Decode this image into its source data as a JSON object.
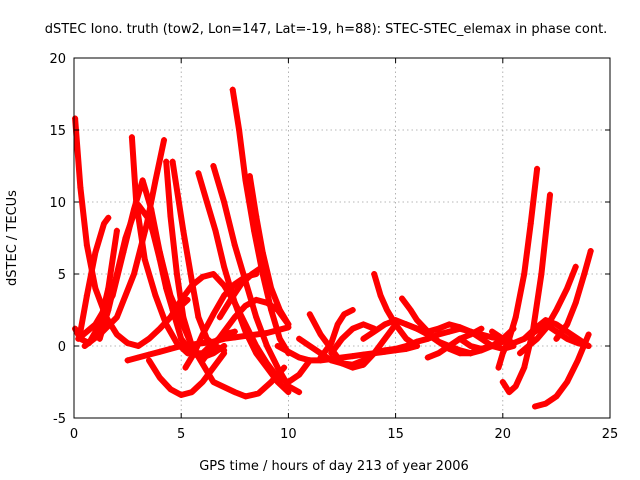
{
  "chart_data": {
    "type": "scatter",
    "title": "dSTEC Iono. truth (tow2, Lon=147, Lat=-19, h=88): STEC-STEC_elemax in phase cont.",
    "xlabel": "GPS time / hours of day 213 of year 2006",
    "ylabel": "dSTEC  / TECUs",
    "xlim": [
      0,
      25
    ],
    "ylim": [
      -5,
      20
    ],
    "xticks": [
      0,
      5,
      10,
      15,
      20,
      25
    ],
    "yticks": [
      -5,
      0,
      5,
      10,
      15,
      20
    ],
    "grid": true,
    "legend": "none",
    "marker": "+",
    "color": "#ff0000",
    "series": [
      {
        "x": [
          0.05,
          0.3,
          0.6,
          1.0,
          1.5,
          2.0,
          2.5,
          3.0,
          3.5,
          4.0,
          4.5,
          5.0,
          5.3
        ],
        "y": [
          15.8,
          11,
          7,
          4,
          2,
          0.8,
          0.2,
          0,
          0.5,
          1.2,
          2.0,
          2.8,
          3.2
        ]
      },
      {
        "x": [
          0.05,
          0.3,
          0.7,
          1.2,
          1.6,
          2.0
        ],
        "y": [
          1.2,
          0.5,
          0.2,
          1.5,
          4,
          8
        ]
      },
      {
        "x": [
          0.3,
          0.6,
          1.0,
          1.4,
          1.6
        ],
        "y": [
          1.0,
          3.5,
          6.5,
          8.5,
          8.9
        ]
      },
      {
        "x": [
          0.5,
          1.2,
          2.0,
          2.8,
          3.4,
          3.8,
          4.2
        ],
        "y": [
          0,
          0.8,
          2.0,
          5.0,
          8.5,
          11.5,
          14.3
        ]
      },
      {
        "x": [
          0.2,
          1.0,
          1.8,
          2.3,
          2.8,
          3.2,
          3.6,
          4.0,
          4.5,
          5.5,
          6.5,
          7.5,
          8.0,
          8.6,
          9.2,
          9.8
        ],
        "y": [
          0.5,
          1.5,
          3.5,
          6.5,
          9.5,
          11.5,
          9.5,
          6.5,
          3.5,
          0,
          -2.5,
          -3.2,
          -3.5,
          -3.3,
          -2.5,
          -1.5
        ]
      },
      {
        "x": [
          1.2,
          1.6,
          2.0,
          2.4,
          2.8
        ],
        "y": [
          0.5,
          2.5,
          5.0,
          7.5,
          9.2
        ]
      },
      {
        "x": [
          2.7,
          2.9,
          3.3,
          3.8,
          4.3,
          4.8,
          5.3,
          6.0,
          6.5,
          7.0,
          7.5
        ],
        "y": [
          14.5,
          10.0,
          6.0,
          3.5,
          1.5,
          0.2,
          -0.5,
          -0.5,
          0.2,
          0.8,
          1.0
        ]
      },
      {
        "x": [
          2.5,
          3.0,
          3.5,
          4.0,
          4.5,
          5.0,
          5.5,
          6.0,
          6.5,
          7.0,
          7.5,
          8.0,
          8.5,
          9.0,
          9.5,
          10.0
        ],
        "y": [
          -1.0,
          -0.8,
          -0.6,
          -0.4,
          -0.2,
          0.0,
          0.1,
          0.2,
          0.3,
          0.5,
          0.6,
          0.7,
          0.8,
          0.9,
          1.1,
          1.3
        ]
      },
      {
        "x": [
          3.5,
          4.0,
          4.3,
          4.7,
          5.0,
          5.5,
          6.0,
          6.5,
          7.0
        ],
        "y": [
          9,
          6,
          4,
          2,
          0.5,
          -0.5,
          -0.8,
          -0.5,
          0.0
        ]
      },
      {
        "x": [
          4.3,
          4.5,
          4.8,
          5.1,
          5.5,
          6.0
        ],
        "y": [
          12.8,
          9,
          5,
          2,
          0,
          -1.0
        ]
      },
      {
        "x": [
          4.6,
          5.1,
          5.5,
          5.8,
          6.2,
          6.6,
          7.0
        ],
        "y": [
          12.8,
          8.0,
          4.5,
          2.0,
          0.5,
          0.0,
          -0.3
        ]
      },
      {
        "x": [
          4.9,
          4.6,
          4.3,
          4.0,
          3.5,
          3.0
        ],
        "y": [
          1.5,
          2.5,
          4.5,
          6.5,
          8.8,
          9.8
        ]
      },
      {
        "x": [
          3.5,
          4.0,
          4.5,
          5.0,
          5.5,
          6.0,
          6.5,
          7.0
        ],
        "y": [
          -1.0,
          -2.2,
          -3.0,
          -3.4,
          -3.2,
          -2.5,
          -1.5,
          -0.5
        ]
      },
      {
        "x": [
          5.8,
          6.2,
          6.6,
          7.0,
          7.5,
          8.0,
          8.5,
          9.0,
          9.5,
          10.0
        ],
        "y": [
          12.0,
          10.0,
          8.0,
          5.5,
          3.0,
          1.0,
          -0.5,
          -1.5,
          -2.5,
          -3.2
        ]
      },
      {
        "x": [
          6.5,
          7.0,
          7.5,
          8.0,
          8.5,
          9.0,
          9.5,
          10.0,
          10.5
        ],
        "y": [
          12.5,
          10,
          7,
          4.5,
          2.0,
          0.0,
          -1.5,
          -2.8,
          -3.2
        ]
      },
      {
        "x": [
          7.4,
          7.7,
          8.0,
          8.4,
          8.8,
          9.2,
          9.6,
          10.0
        ],
        "y": [
          17.8,
          15.0,
          11.5,
          8.0,
          5.0,
          2.5,
          0.5,
          -0.5
        ]
      },
      {
        "x": [
          8.2,
          8.5,
          8.8,
          9.2,
          9.6,
          10.0
        ],
        "y": [
          11.8,
          9.0,
          6.5,
          4.0,
          2.5,
          1.5
        ]
      },
      {
        "x": [
          4.5,
          5.0,
          5.5,
          6.0,
          6.5,
          7.0,
          7.5,
          8.0,
          8.5,
          9.0,
          9.5,
          10.0,
          10.5,
          11.0
        ],
        "y": [
          2.0,
          3.2,
          4.2,
          4.8,
          5.0,
          4.2,
          3.0,
          1.5,
          0.0,
          -1.2,
          -2.2,
          -2.5,
          -2.0,
          -1.0
        ]
      },
      {
        "x": [
          5.2,
          5.6,
          6.0,
          6.5,
          7.0,
          7.5,
          8.0,
          8.5
        ],
        "y": [
          -1.5,
          -0.5,
          0.8,
          2.2,
          3.5,
          4.3,
          4.8,
          5.0
        ]
      },
      {
        "x": [
          6.0,
          6.5,
          7.0,
          7.5,
          8.0,
          8.5,
          9.0,
          9.5,
          10.0
        ],
        "y": [
          -1.0,
          0.0,
          1.0,
          2.0,
          2.8,
          3.2,
          3.0,
          2.5,
          1.5
        ]
      },
      {
        "x": [
          6.8,
          7.3,
          7.8,
          8.3,
          8.8
        ],
        "y": [
          2.0,
          3.2,
          4.3,
          5.0,
          5.5
        ]
      },
      {
        "x": [
          9.5,
          10.0,
          10.5,
          11.0,
          11.5,
          12.0,
          12.5,
          13.0,
          13.5,
          14.0,
          14.5,
          15.0,
          15.5,
          16.0
        ],
        "y": [
          0.0,
          -0.4,
          -0.8,
          -1.0,
          -1.0,
          -0.9,
          -0.8,
          -0.7,
          -0.6,
          -0.5,
          -0.4,
          -0.3,
          -0.2,
          0.0
        ]
      },
      {
        "x": [
          10.5,
          11.0,
          11.5,
          12.0,
          12.5,
          13.0,
          13.5,
          14.0
        ],
        "y": [
          0.5,
          0.0,
          -0.5,
          -1.0,
          -1.2,
          -1.3,
          -1.0,
          -0.5
        ]
      },
      {
        "x": [
          11.0,
          11.5,
          12.0,
          12.5,
          13.0,
          13.5,
          14.0,
          14.5,
          15.0
        ],
        "y": [
          2.2,
          0.8,
          -0.2,
          -1.2,
          -1.5,
          -1.3,
          -0.5,
          0.5,
          1.5
        ]
      },
      {
        "x": [
          11.5,
          12.0,
          12.3,
          12.6,
          13.0
        ],
        "y": [
          -0.8,
          0.2,
          1.5,
          2.2,
          2.5
        ]
      },
      {
        "x": [
          12.0,
          12.5,
          13.0,
          13.5,
          14.0
        ],
        "y": [
          -0.5,
          0.5,
          1.2,
          1.5,
          1.2
        ]
      },
      {
        "x": [
          13.5,
          14.0,
          14.5,
          15.0,
          15.5,
          16.0,
          16.5,
          17.0,
          17.5,
          18.0,
          18.5,
          19.0,
          19.5,
          20.0
        ],
        "y": [
          0.5,
          1.0,
          1.5,
          1.8,
          1.5,
          1.2,
          1.0,
          1.2,
          1.5,
          1.3,
          1.0,
          0.8,
          0.6,
          0.5
        ]
      },
      {
        "x": [
          14.0,
          14.3,
          14.6,
          15.0,
          15.5,
          16.0
        ],
        "y": [
          5.0,
          3.5,
          2.5,
          1.5,
          0.5,
          0.0
        ]
      },
      {
        "x": [
          15.3,
          15.7,
          16.0,
          16.5,
          17.0,
          17.5,
          18.0,
          18.5,
          19.0,
          19.5
        ],
        "y": [
          3.3,
          2.5,
          1.8,
          1.0,
          0.3,
          -0.2,
          -0.5,
          -0.5,
          -0.2,
          0.0
        ]
      },
      {
        "x": [
          14.0,
          14.5,
          15.0,
          15.5,
          16.0,
          16.5,
          17.0,
          17.5,
          18.0,
          18.5,
          19.0,
          19.5,
          20.0,
          20.5
        ],
        "y": [
          -0.5,
          -0.3,
          -0.2,
          0.0,
          0.3,
          0.5,
          0.8,
          1.0,
          1.2,
          1.0,
          0.5,
          0.0,
          -0.2,
          0.0
        ]
      },
      {
        "x": [
          15.5,
          16.0,
          16.5,
          17.0,
          17.5,
          18.0,
          18.5,
          19.0,
          19.5,
          20.0
        ],
        "y": [
          1.5,
          1.2,
          0.8,
          0.3,
          0.0,
          -0.3,
          -0.5,
          -0.3,
          0.0,
          0.3
        ]
      },
      {
        "x": [
          16.5,
          17.0,
          17.5,
          18.0,
          18.5,
          19.0
        ],
        "y": [
          -0.8,
          -0.5,
          0.0,
          0.5,
          0.8,
          1.2
        ]
      },
      {
        "x": [
          18.0,
          18.5,
          19.0,
          19.5,
          20.0,
          20.5
        ],
        "y": [
          0.5,
          0.0,
          -0.2,
          0.0,
          0.5,
          1.2
        ]
      },
      {
        "x": [
          19.5,
          20.0,
          20.5,
          21.0,
          21.5,
          22.0,
          22.5,
          23.0,
          23.5,
          24.0
        ],
        "y": [
          1.0,
          0.5,
          0.2,
          0.5,
          1.0,
          1.5,
          1.0,
          0.5,
          0.2,
          0.0
        ]
      },
      {
        "x": [
          19.8,
          20.0,
          20.3,
          20.6,
          21.0,
          21.3,
          21.6
        ],
        "y": [
          -1.5,
          -0.5,
          0.5,
          2.0,
          5.0,
          8.5,
          12.3
        ]
      },
      {
        "x": [
          20.0,
          20.3,
          20.6,
          21.0,
          21.4,
          21.8,
          22.2
        ],
        "y": [
          -2.5,
          -3.2,
          -2.8,
          -1.5,
          1.0,
          5.0,
          10.5
        ]
      },
      {
        "x": [
          20.8,
          21.2,
          21.6,
          22.0,
          22.5,
          23.0,
          23.4
        ],
        "y": [
          -0.5,
          0.0,
          0.5,
          1.2,
          2.5,
          4.0,
          5.5
        ]
      },
      {
        "x": [
          21.5,
          22.0,
          22.5,
          23.0,
          23.5,
          24.0
        ],
        "y": [
          -4.2,
          -4.0,
          -3.5,
          -2.5,
          -1.0,
          0.8
        ]
      },
      {
        "x": [
          22.5,
          23.0,
          23.4,
          23.8,
          24.1
        ],
        "y": [
          0.5,
          1.5,
          3.0,
          5.0,
          6.6
        ]
      },
      {
        "x": [
          21.0,
          21.5,
          22.0,
          22.5,
          23.0,
          23.5,
          24.0
        ],
        "y": [
          0.5,
          1.2,
          1.8,
          1.5,
          1.0,
          0.5,
          0.0
        ]
      }
    ]
  }
}
